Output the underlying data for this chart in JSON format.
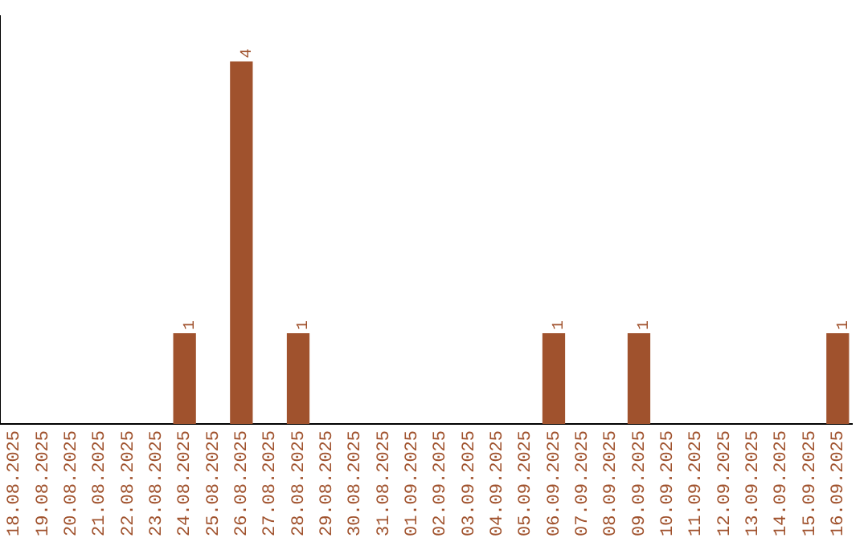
{
  "chart_data": {
    "type": "bar",
    "categories": [
      "18.08.2025",
      "19.08.2025",
      "20.08.2025",
      "21.08.2025",
      "22.08.2025",
      "23.08.2025",
      "24.08.2025",
      "25.08.2025",
      "26.08.2025",
      "27.08.2025",
      "28.08.2025",
      "29.08.2025",
      "30.08.2025",
      "31.08.2025",
      "01.09.2025",
      "02.09.2025",
      "03.09.2025",
      "04.09.2025",
      "05.09.2025",
      "06.09.2025",
      "07.09.2025",
      "08.09.2025",
      "09.09.2025",
      "10.09.2025",
      "11.09.2025",
      "12.09.2025",
      "13.09.2025",
      "14.09.2025",
      "15.09.2025",
      "16.09.2025"
    ],
    "values": [
      0,
      0,
      0,
      0,
      0,
      0,
      1,
      0,
      4,
      0,
      1,
      0,
      0,
      0,
      0,
      0,
      0,
      0,
      0,
      1,
      0,
      0,
      1,
      0,
      0,
      0,
      0,
      0,
      0,
      1
    ],
    "value_labels": [
      null,
      null,
      null,
      null,
      null,
      null,
      "1",
      null,
      "4",
      null,
      "1",
      null,
      null,
      null,
      null,
      null,
      null,
      null,
      null,
      "1",
      null,
      null,
      "1",
      null,
      null,
      null,
      null,
      null,
      null,
      "1"
    ],
    "color": "#a0522d",
    "grid": false,
    "legend": false,
    "tick_labels": "x"
  }
}
